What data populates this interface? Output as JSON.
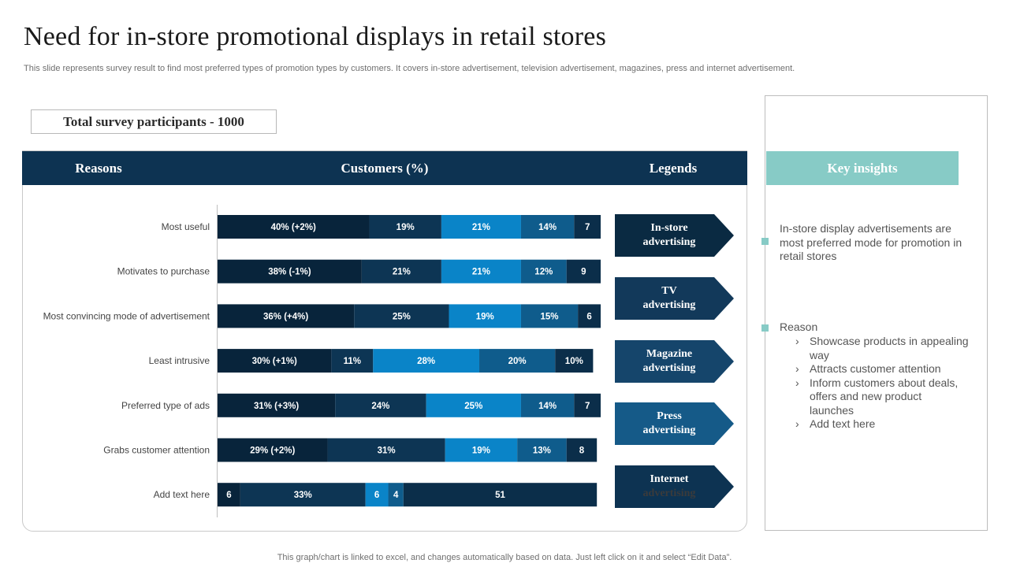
{
  "title": "Need for in-store promotional displays in retail stores",
  "subtitle": "This slide represents survey result to find most preferred types of promotion types by customers. It covers in-store advertisement, television advertisement, magazines, press and internet advertisement.",
  "participants_label": "Total survey participants - 1000",
  "table_headers": {
    "reasons": "Reasons",
    "customers": "Customers (%)",
    "legends": "Legends"
  },
  "legends": [
    {
      "line1": "In-store",
      "line2": "advertising",
      "color": "#0a2a42"
    },
    {
      "line1": "TV",
      "line2": "advertising",
      "color": "#12395a"
    },
    {
      "line1": "Magazine",
      "line2": "advertising",
      "color": "#15456b"
    },
    {
      "line1": "Press",
      "line2": "advertising",
      "color": "#155a88"
    },
    {
      "line1": "Internet",
      "line2": "advertising",
      "color": "#0d3352"
    }
  ],
  "chart_data": {
    "type": "bar",
    "orientation": "horizontal",
    "stacked": true,
    "categories": [
      "Most useful",
      "Motivates to purchase",
      "Most convincing mode of advertisement",
      "Least intrusive",
      "Preferred type of ads",
      "Grabs customer attention",
      "Add text here"
    ],
    "series": [
      {
        "name": "In-store advertising",
        "color": "#08243b",
        "values": [
          40,
          38,
          36,
          30,
          31,
          29,
          6
        ],
        "labels": [
          "40% (+2%)",
          "38% (-1%)",
          "36% (+4%)",
          "30% (+1%)",
          "31% (+3%)",
          "29% (+2%)",
          "6"
        ]
      },
      {
        "name": "TV advertising",
        "color": "#0d3554",
        "values": [
          19,
          21,
          25,
          11,
          24,
          31,
          33
        ],
        "labels": [
          "19%",
          "21%",
          "25%",
          "11%",
          "24%",
          "31%",
          "33%"
        ]
      },
      {
        "name": "Magazine advertising",
        "color": "#0a84c8",
        "values": [
          21,
          21,
          19,
          28,
          25,
          19,
          6
        ],
        "labels": [
          "21%",
          "21%",
          "19%",
          "28%",
          "25%",
          "19%",
          "6"
        ]
      },
      {
        "name": "Press advertising",
        "color": "#0f5c8c",
        "values": [
          14,
          12,
          15,
          20,
          14,
          13,
          4
        ],
        "labels": [
          "14%",
          "12%",
          "15%",
          "20%",
          "14%",
          "13%",
          "4"
        ]
      },
      {
        "name": "Internet advertising",
        "color": "#0b2e4a",
        "values": [
          7,
          9,
          6,
          10,
          7,
          8,
          51
        ],
        "labels": [
          "7",
          "9",
          "6",
          "10%",
          "7",
          "8",
          "51"
        ]
      }
    ],
    "xlim": [
      0,
      101
    ]
  },
  "insights": {
    "header": "Key insights",
    "point": "In-store display advertisements are most preferred mode for promotion in retail stores",
    "reason_label": "Reason",
    "reasons": [
      "Showcase products in appealing way",
      "Attracts customer attention",
      "Inform customers about deals, offers and new product launches",
      "Add text here"
    ]
  },
  "footer": "This graph/chart is linked to excel, and changes automatically based on data. Just left click on it and select “Edit Data”."
}
